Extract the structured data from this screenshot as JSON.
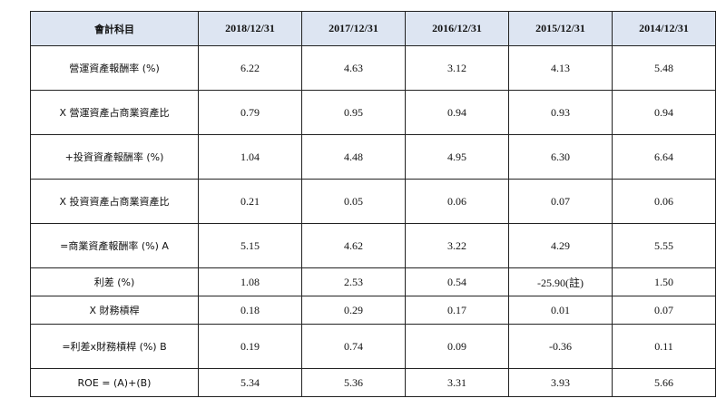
{
  "table": {
    "header": {
      "label": "會計科目",
      "years": [
        "2018/12/31",
        "2017/12/31",
        "2016/12/31",
        "2015/12/31",
        "2014/12/31"
      ]
    },
    "rows": [
      {
        "label": "營運資產報酬率 (%)",
        "values": [
          "6.22",
          "4.63",
          "3.12",
          "4.13",
          "5.48"
        ]
      },
      {
        "label": "X 營運資產占商業資產比",
        "values": [
          "0.79",
          "0.95",
          "0.94",
          "0.93",
          "0.94"
        ]
      },
      {
        "label": "+投資資產報酬率 (%)",
        "values": [
          "1.04",
          "4.48",
          "4.95",
          "6.30",
          "6.64"
        ]
      },
      {
        "label": "X 投資資產占商業資產比",
        "values": [
          "0.21",
          "0.05",
          "0.06",
          "0.07",
          "0.06"
        ]
      },
      {
        "label": "=商業資產報酬率 (%) A",
        "values": [
          "5.15",
          "4.62",
          "3.22",
          "4.29",
          "5.55"
        ]
      },
      {
        "label": "利差 (%)",
        "values": [
          "1.08",
          "2.53",
          "0.54",
          "-25.90(註)",
          "1.50"
        ]
      },
      {
        "label": "X 財務槓桿",
        "values": [
          "0.18",
          "0.29",
          "0.17",
          "0.01",
          "0.07"
        ]
      },
      {
        "label": "=利差x財務槓桿 (%) B",
        "values": [
          "0.19",
          "0.74",
          "0.09",
          "-0.36",
          "0.11"
        ]
      },
      {
        "label": "ROE = (A)+(B)",
        "values": [
          "5.34",
          "5.36",
          "3.31",
          "3.93",
          "5.66"
        ]
      }
    ]
  },
  "colors": {
    "header_bg": "#dde5f2",
    "border": "#222222"
  }
}
